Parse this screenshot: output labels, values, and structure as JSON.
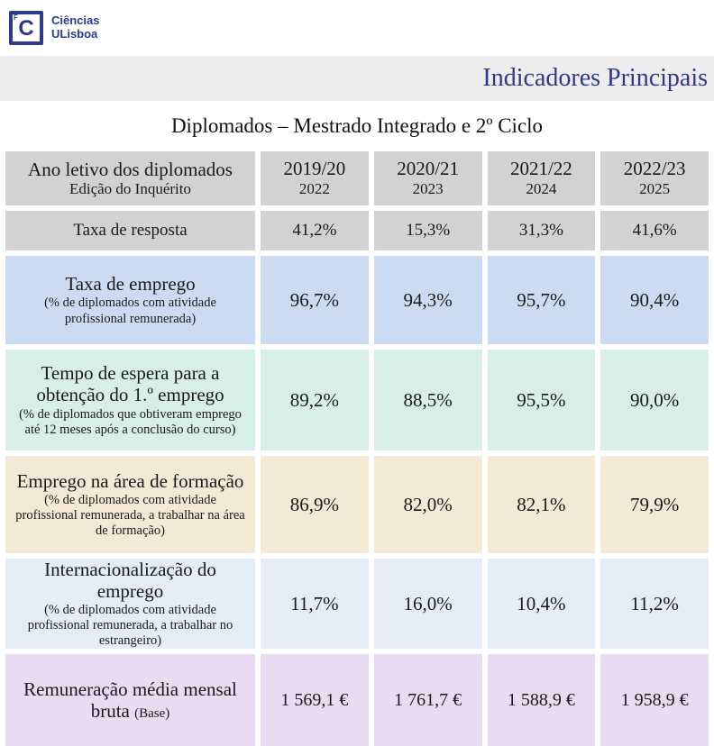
{
  "logo": {
    "mark": "C",
    "tick": "F",
    "line1": "Ciências",
    "line2": "ULisboa"
  },
  "header": {
    "title": "Indicadores Principais"
  },
  "table": {
    "title": "Diplomados – Mestrado Integrado e 2º Ciclo",
    "header": {
      "label_main": "Ano letivo dos diplomados",
      "label_sub": "Edição do Inquérito",
      "columns": [
        {
          "year": "2019/20",
          "edition": "2022"
        },
        {
          "year": "2020/21",
          "edition": "2023"
        },
        {
          "year": "2021/22",
          "edition": "2024"
        },
        {
          "year": "2022/23",
          "edition": "2025"
        }
      ]
    },
    "rows": [
      {
        "name": "Taxa de resposta",
        "sub": "",
        "values": [
          "41,2%",
          "15,3%",
          "31,3%",
          "41,6%"
        ]
      },
      {
        "name": "Taxa de emprego",
        "sub": "(% de diplomados com atividade profissional remunerada)",
        "values": [
          "96,7%",
          "94,3%",
          "95,7%",
          "90,4%"
        ]
      },
      {
        "name": "Tempo de espera para a obtenção do 1.º emprego",
        "sub": "(% de diplomados que obtiveram emprego até 12 meses após a conclusão do curso)",
        "values": [
          "89,2%",
          "88,5%",
          "95,5%",
          "90,0%"
        ]
      },
      {
        "name": "Emprego na área de formação",
        "sub": "(% de diplomados com atividade profissional remunerada, a trabalhar na área de formação)",
        "values": [
          "86,9%",
          "82,0%",
          "82,1%",
          "79,9%"
        ]
      },
      {
        "name": "Internacionalização do emprego",
        "sub": "(% de diplomados com atividade profissional remunerada, a trabalhar no estrangeiro)",
        "values": [
          "11,7%",
          "16,0%",
          "10,4%",
          "11,2%"
        ]
      },
      {
        "name": "Remuneração média mensal bruta",
        "sub_inline": "(Base)",
        "values": [
          "1 569,1 €",
          "1 761,7 €",
          "1 588,9 €",
          "1 958,9 €"
        ]
      }
    ]
  },
  "colors": {
    "brand_navy": "#2c398d",
    "band_gray": "#eeecec",
    "header_gray": "#d2d2d2",
    "row_blue": "#cbdcf2",
    "row_mint": "#d7efe6",
    "row_cream": "#f3e9d5",
    "row_pale_blue": "#e4ecf8",
    "row_lavender": "#e9dbf1"
  },
  "chart_data": {
    "type": "table",
    "title": "Diplomados – Mestrado Integrado e 2º Ciclo",
    "columns": [
      "2019/20 (2022)",
      "2020/21 (2023)",
      "2021/22 (2024)",
      "2022/23 (2025)"
    ],
    "rows": [
      {
        "indicator": "Taxa de resposta",
        "values": [
          41.2,
          15.3,
          31.3,
          41.6
        ],
        "unit": "%"
      },
      {
        "indicator": "Taxa de emprego",
        "values": [
          96.7,
          94.3,
          95.7,
          90.4
        ],
        "unit": "%"
      },
      {
        "indicator": "Tempo de espera para a obtenção do 1.º emprego",
        "values": [
          89.2,
          88.5,
          95.5,
          90.0
        ],
        "unit": "%"
      },
      {
        "indicator": "Emprego na área de formação",
        "values": [
          86.9,
          82.0,
          82.1,
          79.9
        ],
        "unit": "%"
      },
      {
        "indicator": "Internacionalização do emprego",
        "values": [
          11.7,
          16.0,
          10.4,
          11.2
        ],
        "unit": "%"
      },
      {
        "indicator": "Remuneração média mensal bruta (Base)",
        "values": [
          1569.1,
          1761.7,
          1588.9,
          1958.9
        ],
        "unit": "€"
      }
    ]
  }
}
